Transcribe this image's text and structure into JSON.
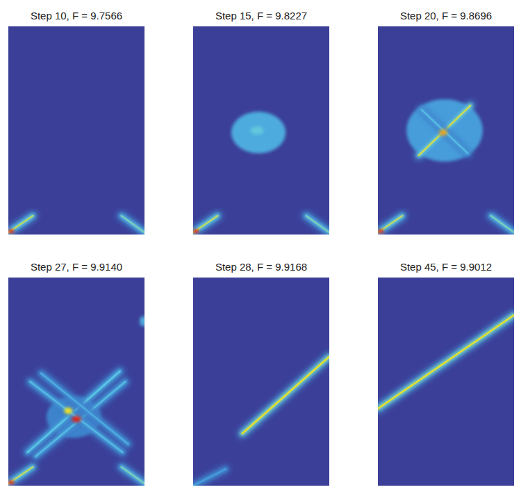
{
  "chart_data": [
    {
      "type": "heatmap",
      "title": "Step 10, F = 9.7566",
      "xlim": [
        0,
        1
      ],
      "ylim": [
        0,
        1
      ],
      "tick_labels": false,
      "color_range": [
        0,
        1
      ],
      "features": [
        {
          "shape": "beam",
          "x": [
            0.0,
            0.18
          ],
          "y": [
            0.01,
            0.09
          ],
          "intensity": 0.7
        },
        {
          "shape": "blob",
          "x": 0.02,
          "y": 0.015,
          "width": 0.05,
          "height": 0.02,
          "intensity": 1.0
        },
        {
          "shape": "beam",
          "x": [
            1.0,
            0.83
          ],
          "y": [
            0.01,
            0.09
          ],
          "intensity": 0.6
        }
      ]
    },
    {
      "type": "heatmap",
      "title": "Step 15, F = 9.8227",
      "xlim": [
        0,
        1
      ],
      "ylim": [
        0,
        1
      ],
      "tick_labels": false,
      "color_range": [
        0,
        1
      ],
      "features": [
        {
          "shape": "beam",
          "x": [
            0.0,
            0.18
          ],
          "y": [
            0.01,
            0.09
          ],
          "intensity": 0.7
        },
        {
          "shape": "blob",
          "x": 0.02,
          "y": 0.015,
          "width": 0.05,
          "height": 0.02,
          "intensity": 1.0
        },
        {
          "shape": "beam",
          "x": [
            1.0,
            0.83
          ],
          "y": [
            0.01,
            0.09
          ],
          "intensity": 0.6
        },
        {
          "shape": "blob",
          "x": 0.48,
          "y": 0.49,
          "width": 0.4,
          "height": 0.2,
          "intensity": 0.45
        },
        {
          "shape": "blob",
          "x": 0.47,
          "y": 0.5,
          "width": 0.1,
          "height": 0.04,
          "intensity": 0.56
        }
      ]
    },
    {
      "type": "heatmap",
      "title": "Step 20, F = 9.8696",
      "xlim": [
        0,
        1
      ],
      "ylim": [
        0,
        1
      ],
      "tick_labels": false,
      "color_range": [
        0,
        1
      ],
      "features": [
        {
          "shape": "beam",
          "x": [
            0.0,
            0.18
          ],
          "y": [
            0.01,
            0.09
          ],
          "intensity": 0.7
        },
        {
          "shape": "blob",
          "x": 0.02,
          "y": 0.015,
          "width": 0.05,
          "height": 0.02,
          "intensity": 1.0
        },
        {
          "shape": "beam",
          "x": [
            1.0,
            0.83
          ],
          "y": [
            0.01,
            0.09
          ],
          "intensity": 0.6
        },
        {
          "shape": "blob",
          "x": 0.49,
          "y": 0.5,
          "width": 0.56,
          "height": 0.3,
          "intensity": 0.4
        },
        {
          "shape": "beam",
          "x": [
            0.3,
            0.68
          ],
          "y": [
            0.38,
            0.62
          ],
          "intensity": 0.72
        },
        {
          "shape": "beam",
          "x": [
            0.32,
            0.66
          ],
          "y": [
            0.6,
            0.39
          ],
          "intensity": 0.5
        },
        {
          "shape": "blob",
          "x": 0.48,
          "y": 0.49,
          "width": 0.06,
          "height": 0.03,
          "intensity": 0.85
        }
      ]
    },
    {
      "type": "heatmap",
      "title": "Step 27, F = 9.9140",
      "xlim": [
        0,
        1
      ],
      "ylim": [
        0,
        1
      ],
      "tick_labels": false,
      "color_range": [
        0,
        1
      ],
      "features": [
        {
          "shape": "beam",
          "x": [
            0.0,
            0.18
          ],
          "y": [
            0.01,
            0.09
          ],
          "intensity": 0.7
        },
        {
          "shape": "blob",
          "x": 0.02,
          "y": 0.015,
          "width": 0.05,
          "height": 0.02,
          "intensity": 1.0
        },
        {
          "shape": "beam",
          "x": [
            1.0,
            0.83
          ],
          "y": [
            0.01,
            0.09
          ],
          "intensity": 0.6
        },
        {
          "shape": "blob",
          "x": 0.48,
          "y": 0.33,
          "width": 0.4,
          "height": 0.2,
          "intensity": 0.3
        },
        {
          "shape": "beam",
          "x": [
            0.14,
            0.82
          ],
          "y": [
            0.16,
            0.55
          ],
          "intensity": 0.55
        },
        {
          "shape": "beam",
          "x": [
            0.2,
            0.86
          ],
          "y": [
            0.14,
            0.5
          ],
          "intensity": 0.5
        },
        {
          "shape": "beam",
          "x": [
            0.16,
            0.84
          ],
          "y": [
            0.5,
            0.16
          ],
          "intensity": 0.5
        },
        {
          "shape": "beam",
          "x": [
            0.24,
            0.88
          ],
          "y": [
            0.54,
            0.2
          ],
          "intensity": 0.45
        },
        {
          "shape": "blob",
          "x": 0.44,
          "y": 0.36,
          "width": 0.06,
          "height": 0.03,
          "intensity": 0.78
        },
        {
          "shape": "blob",
          "x": 0.5,
          "y": 0.32,
          "width": 0.07,
          "height": 0.03,
          "intensity": 1.0
        },
        {
          "shape": "blob",
          "x": 0.99,
          "y": 0.79,
          "width": 0.05,
          "height": 0.05,
          "intensity": 0.45
        }
      ]
    },
    {
      "type": "heatmap",
      "title": "Step 28, F = 9.9168",
      "xlim": [
        0,
        1
      ],
      "ylim": [
        0,
        1
      ],
      "tick_labels": false,
      "color_range": [
        0,
        1
      ],
      "features": [
        {
          "shape": "beam",
          "x": [
            0.36,
            1.0
          ],
          "y": [
            0.25,
            0.62
          ],
          "intensity": 0.76
        },
        {
          "shape": "beam",
          "x": [
            0.0,
            0.24
          ],
          "y": [
            0.0,
            0.08
          ],
          "intensity": 0.4
        }
      ]
    },
    {
      "type": "heatmap",
      "title": "Step 45, F = 9.9012",
      "xlim": [
        0,
        1
      ],
      "ylim": [
        0,
        1
      ],
      "tick_labels": false,
      "color_range": [
        0,
        1
      ],
      "features": [
        {
          "shape": "beam",
          "x": [
            0.0,
            1.0
          ],
          "y": [
            0.37,
            0.82
          ],
          "intensity": 0.76
        }
      ]
    }
  ]
}
